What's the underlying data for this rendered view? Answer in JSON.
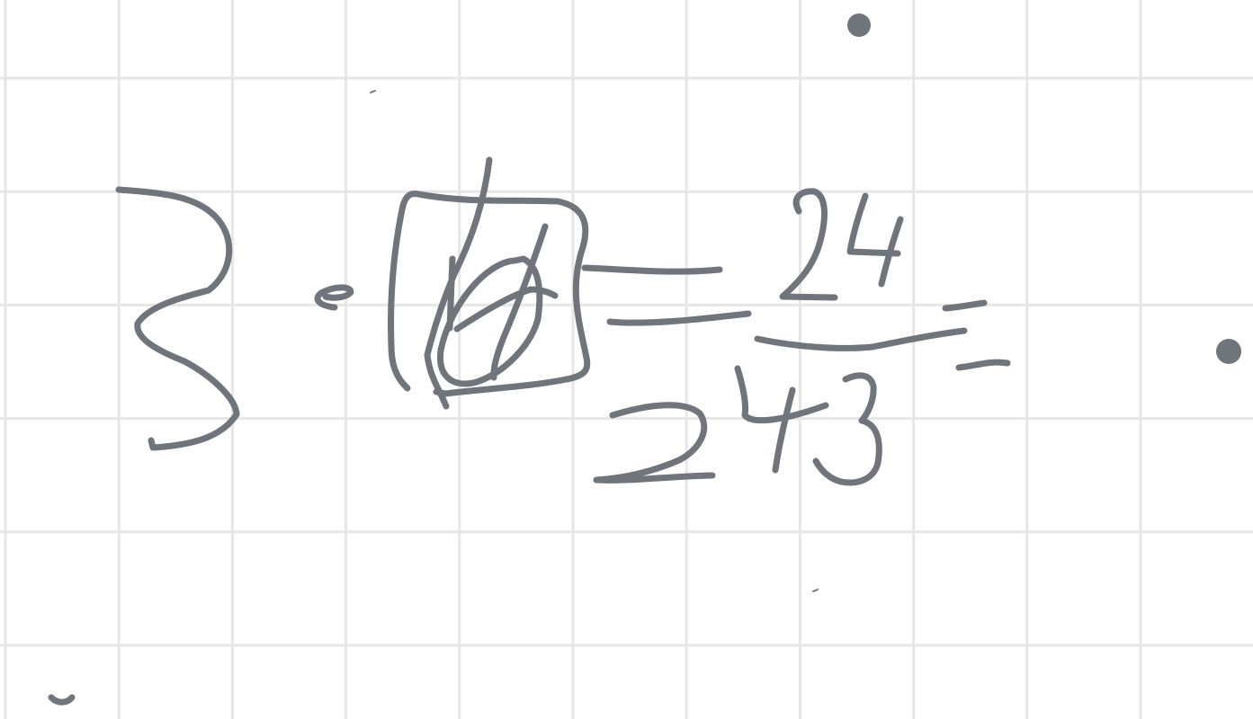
{
  "canvas": {
    "background_color": "#ffffff",
    "grid_color": "#e6e6e6",
    "grid_visible": true,
    "ink_color": "#6f757b"
  },
  "content": {
    "type": "handwritten-math",
    "strokes": [
      "digit-3",
      "multiplication-dot",
      "boxed-crossed-out-zero",
      "equals-sign",
      "fraction-numerator-24",
      "fraction-bar",
      "fraction-denominator-243",
      "trailing-equals-sign",
      "dot-top",
      "dot-right",
      "partial-mark-bottom-left"
    ]
  }
}
